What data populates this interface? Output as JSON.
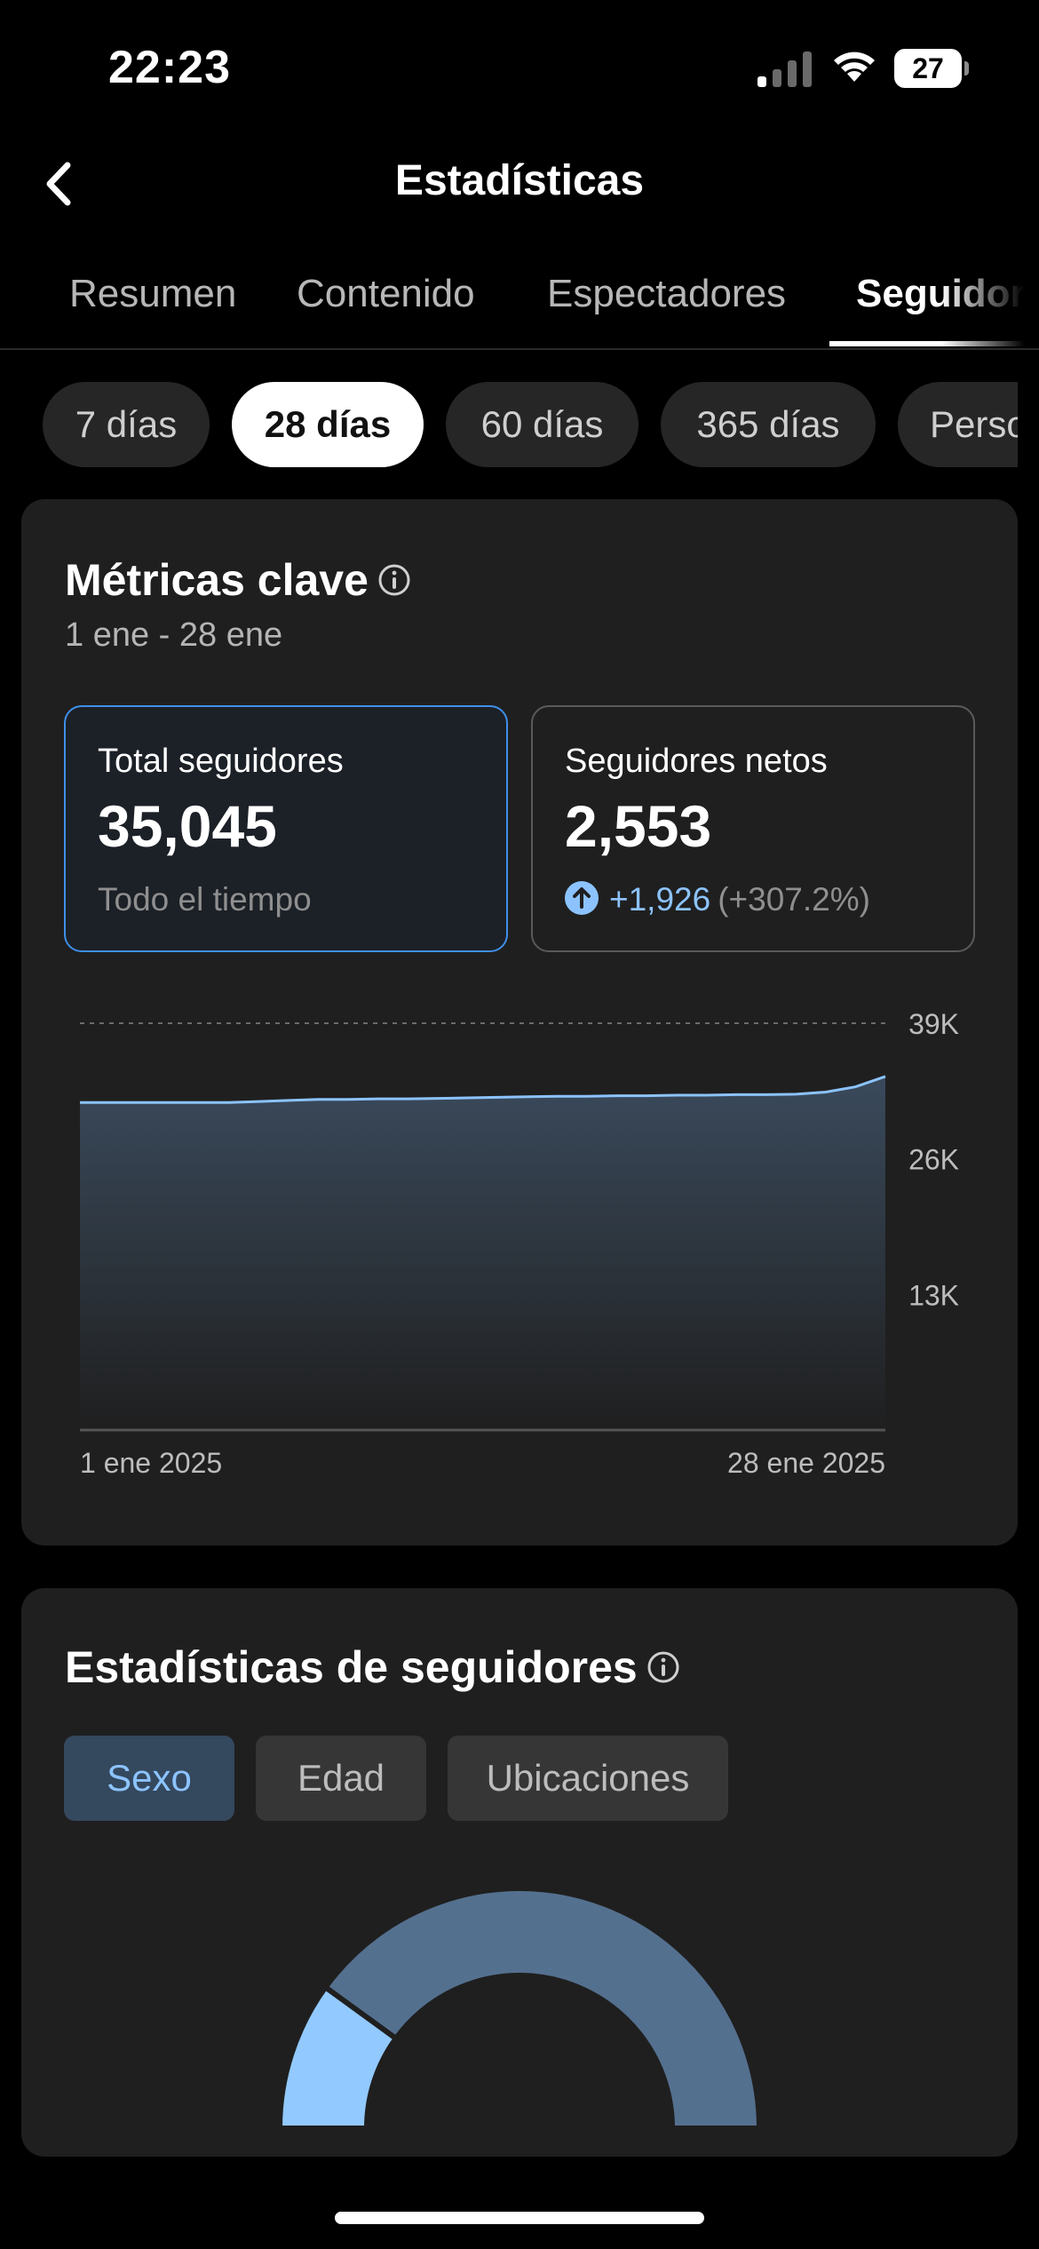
{
  "status_bar": {
    "time": "22:23",
    "battery": "27",
    "icons": [
      "signal-icon",
      "wifi-icon",
      "battery-icon"
    ]
  },
  "header": {
    "title": "Estadísticas",
    "back_icon": "chevron-left-icon"
  },
  "tabs": [
    {
      "label": "Resumen",
      "active": false
    },
    {
      "label": "Contenido",
      "active": false
    },
    {
      "label": "Espectadores",
      "active": false
    },
    {
      "label": "Seguidores",
      "active": true
    }
  ],
  "periods": [
    {
      "label": "7 días",
      "active": false
    },
    {
      "label": "28 días",
      "active": true
    },
    {
      "label": "60 días",
      "active": false
    },
    {
      "label": "365 días",
      "active": false
    },
    {
      "label": "Personalizado",
      "active": false
    }
  ],
  "key_metrics": {
    "title": "Métricas clave",
    "date_range": "1 ene - 28 ene",
    "total_followers": {
      "label": "Total seguidores",
      "value": "35,045",
      "sub": "Todo el tiempo"
    },
    "net_followers": {
      "label": "Seguidores netos",
      "value": "2,553",
      "delta": "+1,926",
      "delta_pct": "(+307.2%)"
    }
  },
  "chart_data": {
    "type": "area",
    "x_start_label": "1 ene 2025",
    "x_end_label": "28 ene 2025",
    "ytick_labels": [
      "39K",
      "26K",
      "13K"
    ],
    "yticks": [
      39000,
      26000,
      13000
    ],
    "ylim": [
      0,
      39000
    ],
    "grid": true,
    "x": [
      1,
      2,
      3,
      4,
      5,
      6,
      7,
      8,
      9,
      10,
      11,
      12,
      13,
      14,
      15,
      16,
      17,
      18,
      19,
      20,
      21,
      22,
      23,
      24,
      25,
      26,
      27,
      28
    ],
    "values": [
      31400,
      31400,
      31400,
      31400,
      31400,
      31400,
      31500,
      31600,
      31700,
      31700,
      31750,
      31750,
      31800,
      31850,
      31900,
      31950,
      32000,
      32000,
      32050,
      32050,
      32100,
      32100,
      32150,
      32150,
      32200,
      32400,
      32900,
      33900
    ],
    "colors": {
      "line": "#8cc3ff",
      "fill_top": "#3a4a5c",
      "fill_bottom": "#1f1f1f"
    }
  },
  "follower_stats": {
    "title": "Estadísticas de seguidores",
    "segments": [
      {
        "label": "Sexo",
        "active": true
      },
      {
        "label": "Edad",
        "active": false
      },
      {
        "label": "Ubicaciones",
        "active": false
      }
    ],
    "gender_split": {
      "segments": [
        {
          "share": 0.2,
          "color": "#92c9ff"
        },
        {
          "share": 0.8,
          "color": "#54708f"
        }
      ]
    }
  }
}
